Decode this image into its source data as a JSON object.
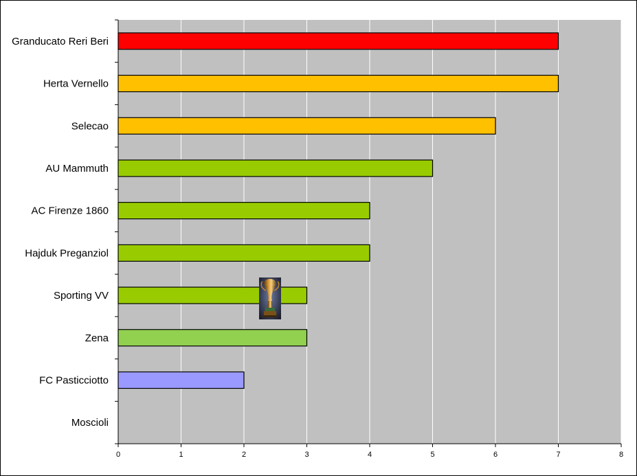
{
  "chart_data": {
    "type": "bar",
    "orientation": "horizontal",
    "categories": [
      "Granducato Reri Beri",
      "Herta Vernello",
      "Selecao",
      "AU Mammuth",
      "AC Firenze 1860",
      "Hajduk Preganziol",
      "Sporting VV",
      "Zena",
      "FC Pasticciotto",
      "Moscioli"
    ],
    "values": [
      7,
      7,
      6,
      5,
      4,
      4,
      3,
      3,
      2,
      0
    ],
    "colors": [
      "#ff0000",
      "#ffc000",
      "#ffc000",
      "#99cc00",
      "#99cc00",
      "#99cc00",
      "#99cc00",
      "#92d050",
      "#9999ff",
      "#9999ff"
    ],
    "xlim": [
      0,
      8
    ],
    "xticks": [
      "0",
      "1",
      "2",
      "3",
      "4",
      "5",
      "6",
      "7",
      "8"
    ],
    "title": "",
    "xlabel": "",
    "ylabel": "",
    "grid": true,
    "plot_background": "#c0c0c0",
    "gridline_color": "#ffffff",
    "legend": "none",
    "annotation_icon": "trophy-icon"
  }
}
